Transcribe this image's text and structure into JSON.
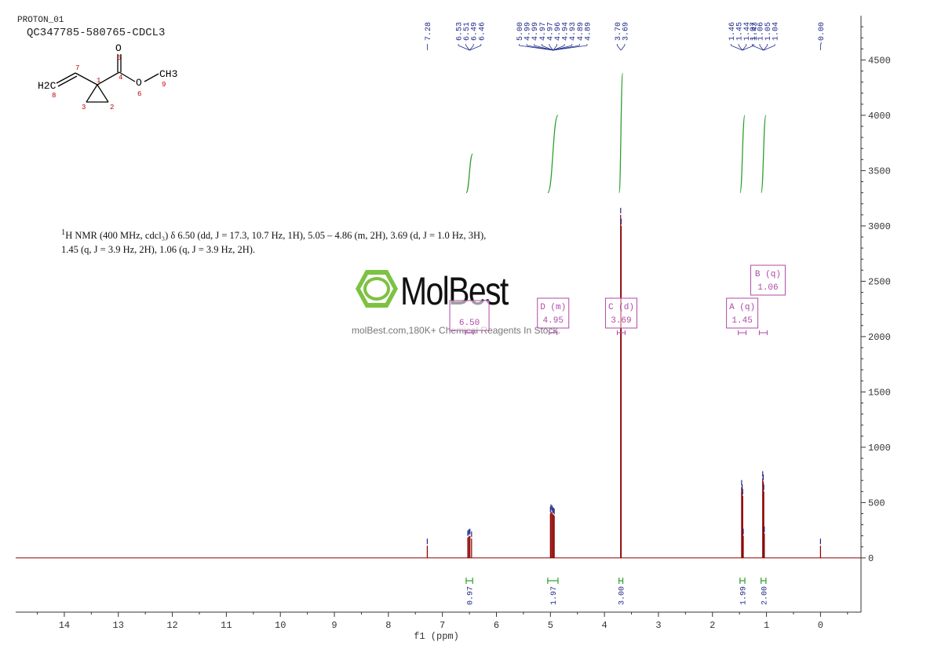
{
  "header": {
    "experiment": "PROTON_01",
    "sample": "QC347785-580765-CDCL3"
  },
  "molecule": {
    "atoms": [
      {
        "symbol": "O",
        "number": "5"
      },
      {
        "symbol": "O",
        "number": "6"
      },
      {
        "symbol": "CH3",
        "number": "9"
      },
      {
        "symbol": "H2C",
        "number": "8"
      },
      {
        "symbol": "",
        "number": "7"
      },
      {
        "symbol": "",
        "number": "1"
      },
      {
        "symbol": "",
        "number": "4"
      },
      {
        "symbol": "",
        "number": "3"
      },
      {
        "symbol": "",
        "number": "2"
      }
    ],
    "colors": {
      "bond": "#000000",
      "number": "#c00000"
    }
  },
  "description": {
    "sup": "1",
    "text": "H NMR (400 MHz, cdcl₃) δ 6.50 (dd, J = 17.3, 10.7 Hz, 1H), 5.05 – 4.86 (m, 2H), 3.69 (d, J = 1.0 Hz, 3H), 1.45 (q, J = 3.9 Hz, 2H), 1.06 (q, J = 3.9 Hz, 2H)."
  },
  "watermark": {
    "brand": "MolBest",
    "site": "molBest.com,180K+ Chemical Reagents In Stock.",
    "color": "#7dc242"
  },
  "chart_data": {
    "type": "line",
    "xlabel": "f1 (ppm)",
    "x_reversed": true,
    "xlim": [
      14.9,
      -0.75
    ],
    "ylim": [
      -490,
      4900
    ],
    "x_ticks": [
      14,
      13,
      12,
      11,
      10,
      9,
      8,
      7,
      6,
      5,
      4,
      3,
      2,
      1,
      0
    ],
    "y_ticks": [
      0,
      500,
      1000,
      1500,
      2000,
      2500,
      3000,
      3500,
      4000,
      4500
    ],
    "colors": {
      "spectrum": "#8b0000",
      "peak_label": "#1f2a8a",
      "integral": "#2e9e2e",
      "multiplet": "#b04aa8",
      "axis": "#333333"
    },
    "peaks": [
      {
        "ppm": 7.28,
        "height": 110
      },
      {
        "ppm": 6.53,
        "height": 185
      },
      {
        "ppm": 6.51,
        "height": 195
      },
      {
        "ppm": 6.49,
        "height": 200
      },
      {
        "ppm": 6.46,
        "height": 175
      },
      {
        "ppm": 5.0,
        "height": 400
      },
      {
        "ppm": 4.99,
        "height": 420
      },
      {
        "ppm": 4.97,
        "height": 410
      },
      {
        "ppm": 4.96,
        "height": 395
      },
      {
        "ppm": 4.94,
        "height": 390
      },
      {
        "ppm": 4.93,
        "height": 380
      },
      {
        "ppm": 3.7,
        "height": 3100
      },
      {
        "ppm": 3.69,
        "height": 3000
      },
      {
        "ppm": 1.46,
        "height": 640
      },
      {
        "ppm": 1.45,
        "height": 600
      },
      {
        "ppm": 1.44,
        "height": 560
      },
      {
        "ppm": 1.43,
        "height": 200
      },
      {
        "ppm": 1.07,
        "height": 720
      },
      {
        "ppm": 1.06,
        "height": 690
      },
      {
        "ppm": 1.05,
        "height": 600
      },
      {
        "ppm": 1.04,
        "height": 220
      },
      {
        "ppm": 0.0,
        "height": 110
      }
    ],
    "peak_label_groups": [
      {
        "anchor_ppm": 7.28,
        "labels": [
          "7.28"
        ]
      },
      {
        "anchor_ppm": 6.495,
        "labels": [
          "6.53",
          "6.51",
          "6.49",
          "6.46"
        ]
      },
      {
        "anchor_ppm": 4.95,
        "labels": [
          "5.00",
          "4.99",
          "4.99",
          "4.97",
          "4.97",
          "4.96",
          "4.94",
          "4.93",
          "4.89",
          "4.89"
        ]
      },
      {
        "anchor_ppm": 3.695,
        "labels": [
          "3.70",
          "3.69"
        ]
      },
      {
        "anchor_ppm": 1.445,
        "labels": [
          "1.46",
          "1.45",
          "1.44",
          "1.43"
        ]
      },
      {
        "anchor_ppm": 1.055,
        "labels": [
          "1.07",
          "1.06",
          "1.05",
          "1.04"
        ]
      },
      {
        "anchor_ppm": 0.0,
        "labels": [
          "-0.00"
        ]
      }
    ],
    "integrals": [
      {
        "from": 6.56,
        "to": 6.44,
        "value": "0.97",
        "y_start": 3300,
        "y_end": 3650
      },
      {
        "from": 5.05,
        "to": 4.86,
        "value": "1.97",
        "y_start": 3300,
        "y_end": 4000
      },
      {
        "from": 3.73,
        "to": 3.66,
        "value": "3.00",
        "y_start": 3300,
        "y_end": 4380
      },
      {
        "from": 1.49,
        "to": 1.4,
        "value": "1.99",
        "y_start": 3300,
        "y_end": 4000
      },
      {
        "from": 1.1,
        "to": 1.01,
        "value": "2.00",
        "y_start": 3300,
        "y_end": 4000
      }
    ],
    "multiplets": [
      {
        "letter": "",
        "type": "",
        "shift": "6.50",
        "ppm": 6.5
      },
      {
        "letter": "D",
        "type": "(m)",
        "shift": "4.95",
        "ppm": 4.95
      },
      {
        "letter": "C",
        "type": "(d)",
        "shift": "3.69",
        "ppm": 3.69
      },
      {
        "letter": "A",
        "type": "(q)",
        "shift": "1.45",
        "ppm": 1.45
      },
      {
        "letter": "B",
        "type": "(q)",
        "shift": "1.06",
        "ppm": 1.06
      }
    ]
  }
}
